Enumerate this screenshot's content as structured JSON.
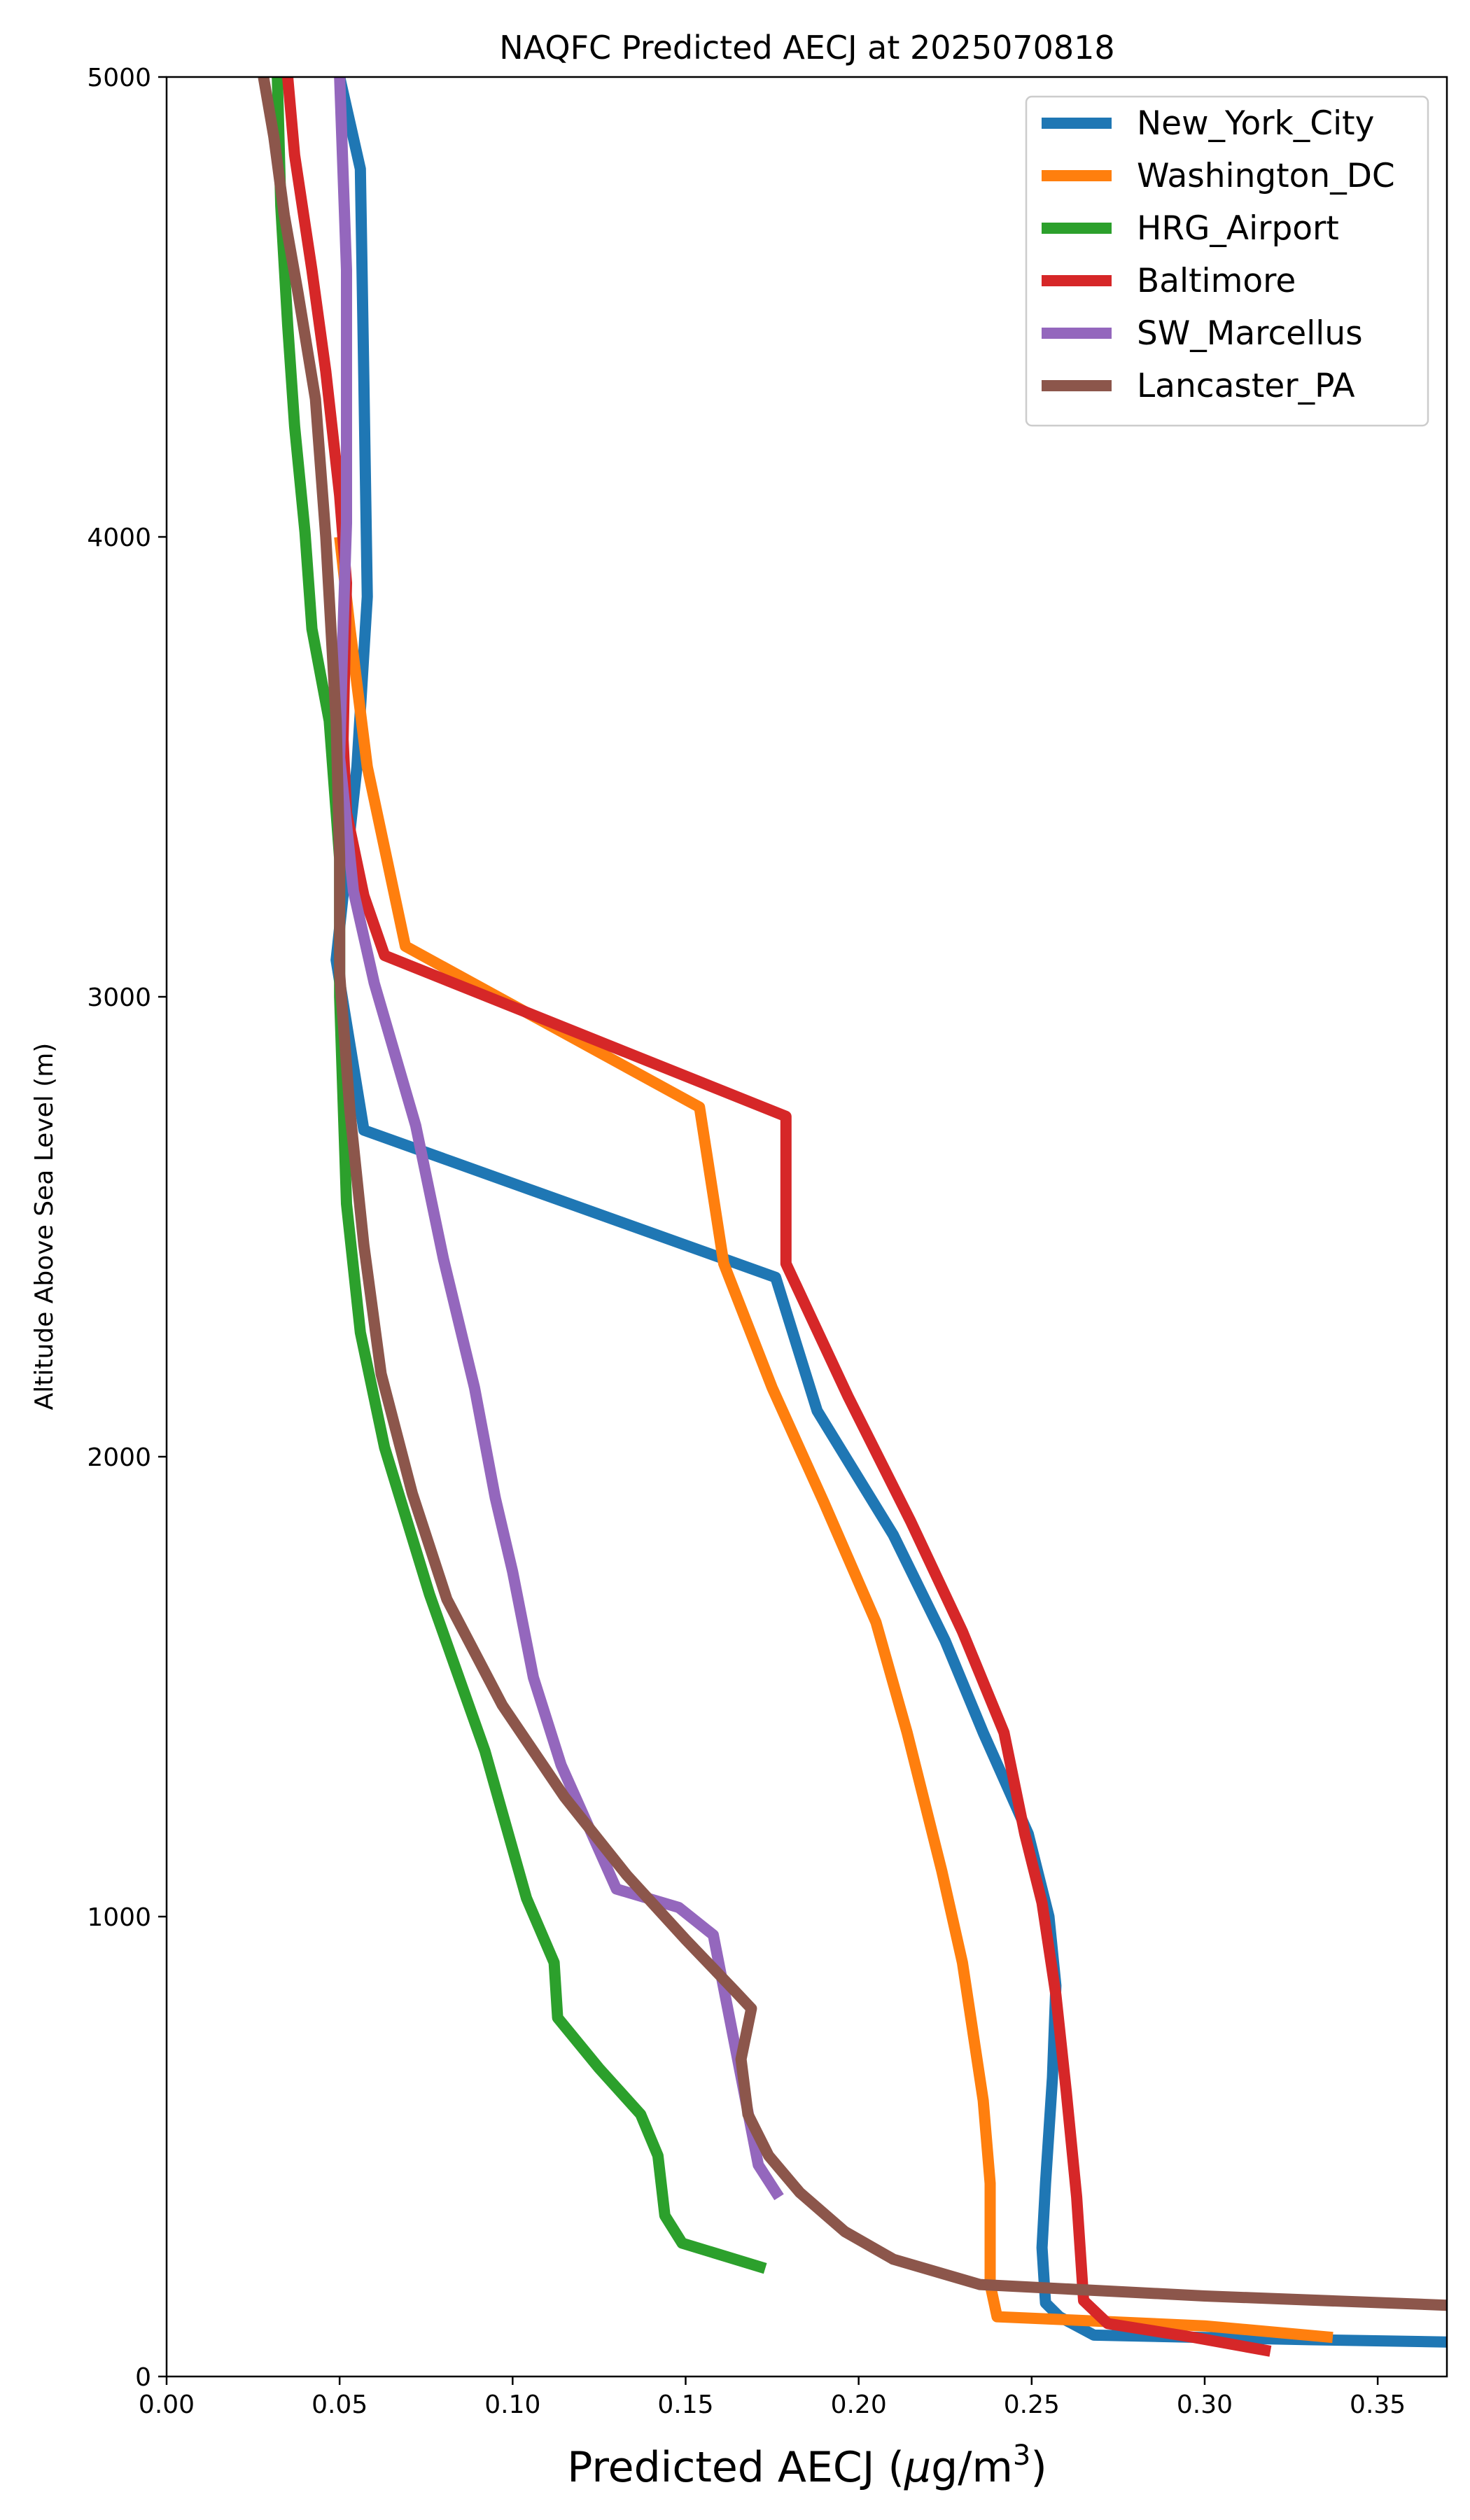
{
  "chart_data": {
    "type": "line",
    "title": "NAQFC Predicted AECJ at 2025070818",
    "xlabel_main": "Predicted AECJ (",
    "xlabel_mu": "μ",
    "xlabel_unit": "g/m",
    "xlabel_sup": "3",
    "xlabel_close": ")",
    "ylabel": "Altitude Above Sea Level (m)",
    "xlim": [
      0.0,
      0.37
    ],
    "ylim": [
      0,
      5000
    ],
    "xticks": [
      "0.00",
      "0.05",
      "0.10",
      "0.15",
      "0.20",
      "0.25",
      "0.30",
      "0.35"
    ],
    "xtick_values": [
      0.0,
      0.05,
      0.1,
      0.15,
      0.2,
      0.25,
      0.3,
      0.35
    ],
    "yticks": [
      "0",
      "1000",
      "2000",
      "3000",
      "4000",
      "5000"
    ],
    "ytick_values": [
      0,
      1000,
      2000,
      3000,
      4000,
      5000
    ],
    "grid": false,
    "legend_position": "top-right",
    "series": [
      {
        "name": "New_York_City",
        "color": "#1f77b4",
        "points": [
          [
            0.37,
            75
          ],
          [
            0.33,
            80
          ],
          [
            0.268,
            90
          ],
          [
            0.258,
            130
          ],
          [
            0.254,
            160
          ],
          [
            0.253,
            280
          ],
          [
            0.254,
            420
          ],
          [
            0.256,
            650
          ],
          [
            0.257,
            850
          ],
          [
            0.255,
            1000
          ],
          [
            0.249,
            1180
          ],
          [
            0.236,
            1400
          ],
          [
            0.225,
            1600
          ],
          [
            0.21,
            1830
          ],
          [
            0.188,
            2100
          ],
          [
            0.176,
            2390
          ],
          [
            0.057,
            2710
          ],
          [
            0.049,
            3080
          ],
          [
            0.055,
            3500
          ],
          [
            0.058,
            3870
          ],
          [
            0.057,
            4340
          ],
          [
            0.056,
            4800
          ],
          [
            0.05,
            5000
          ]
        ]
      },
      {
        "name": "Washington_DC",
        "color": "#ff7f0e",
        "points": [
          [
            0.337,
            85
          ],
          [
            0.3,
            110
          ],
          [
            0.24,
            130
          ],
          [
            0.238,
            200
          ],
          [
            0.238,
            420
          ],
          [
            0.236,
            600
          ],
          [
            0.23,
            900
          ],
          [
            0.224,
            1100
          ],
          [
            0.214,
            1400
          ],
          [
            0.205,
            1640
          ],
          [
            0.19,
            1900
          ],
          [
            0.175,
            2150
          ],
          [
            0.161,
            2420
          ],
          [
            0.154,
            2760
          ],
          [
            0.069,
            3110
          ],
          [
            0.058,
            3500
          ],
          [
            0.053,
            3800
          ],
          [
            0.05,
            4000
          ]
        ]
      },
      {
        "name": "HRG_Airport",
        "color": "#2ca02c",
        "points": [
          [
            0.173,
            235
          ],
          [
            0.149,
            290
          ],
          [
            0.144,
            350
          ],
          [
            0.142,
            480
          ],
          [
            0.137,
            570
          ],
          [
            0.125,
            670
          ],
          [
            0.113,
            780
          ],
          [
            0.112,
            900
          ],
          [
            0.104,
            1040
          ],
          [
            0.092,
            1360
          ],
          [
            0.076,
            1700
          ],
          [
            0.063,
            2020
          ],
          [
            0.056,
            2270
          ],
          [
            0.052,
            2550
          ],
          [
            0.05,
            3000
          ],
          [
            0.05,
            3300
          ],
          [
            0.047,
            3600
          ],
          [
            0.042,
            3800
          ],
          [
            0.04,
            4010
          ],
          [
            0.037,
            4240
          ],
          [
            0.035,
            4460
          ],
          [
            0.033,
            4720
          ],
          [
            0.032,
            5000
          ]
        ]
      },
      {
        "name": "Baltimore",
        "color": "#d62728",
        "points": [
          [
            0.319,
            55
          ],
          [
            0.297,
            85
          ],
          [
            0.272,
            115
          ],
          [
            0.265,
            165
          ],
          [
            0.263,
            390
          ],
          [
            0.26,
            620
          ],
          [
            0.257,
            830
          ],
          [
            0.253,
            1030
          ],
          [
            0.248,
            1180
          ],
          [
            0.242,
            1400
          ],
          [
            0.23,
            1620
          ],
          [
            0.215,
            1860
          ],
          [
            0.197,
            2130
          ],
          [
            0.179,
            2420
          ],
          [
            0.179,
            2740
          ],
          [
            0.063,
            3090
          ],
          [
            0.057,
            3220
          ],
          [
            0.052,
            3400
          ],
          [
            0.051,
            3560
          ],
          [
            0.052,
            3900
          ],
          [
            0.05,
            4090
          ],
          [
            0.046,
            4360
          ],
          [
            0.042,
            4580
          ],
          [
            0.037,
            4830
          ],
          [
            0.035,
            5000
          ]
        ]
      },
      {
        "name": "SW_Marcellus",
        "color": "#9467bd",
        "points": [
          [
            0.177,
            390
          ],
          [
            0.171,
            460
          ],
          [
            0.158,
            960
          ],
          [
            0.148,
            1020
          ],
          [
            0.13,
            1060
          ],
          [
            0.114,
            1330
          ],
          [
            0.106,
            1520
          ],
          [
            0.1,
            1750
          ],
          [
            0.095,
            1910
          ],
          [
            0.089,
            2150
          ],
          [
            0.08,
            2430
          ],
          [
            0.072,
            2720
          ],
          [
            0.06,
            3030
          ],
          [
            0.054,
            3230
          ],
          [
            0.05,
            3520
          ],
          [
            0.051,
            3800
          ],
          [
            0.052,
            4030
          ],
          [
            0.052,
            4580
          ],
          [
            0.05,
            5000
          ]
        ]
      },
      {
        "name": "Lancaster_PA",
        "color": "#8c564b",
        "points": [
          [
            0.37,
            155
          ],
          [
            0.3,
            175
          ],
          [
            0.235,
            200
          ],
          [
            0.21,
            255
          ],
          [
            0.196,
            315
          ],
          [
            0.183,
            400
          ],
          [
            0.174,
            480
          ],
          [
            0.168,
            570
          ],
          [
            0.166,
            690
          ],
          [
            0.169,
            800
          ],
          [
            0.164,
            840
          ],
          [
            0.15,
            950
          ],
          [
            0.133,
            1090
          ],
          [
            0.115,
            1260
          ],
          [
            0.097,
            1460
          ],
          [
            0.081,
            1690
          ],
          [
            0.071,
            1920
          ],
          [
            0.062,
            2180
          ],
          [
            0.057,
            2460
          ],
          [
            0.053,
            2750
          ],
          [
            0.05,
            3050
          ],
          [
            0.05,
            3300
          ],
          [
            0.049,
            3600
          ],
          [
            0.046,
            4000
          ],
          [
            0.043,
            4300
          ],
          [
            0.038,
            4530
          ],
          [
            0.034,
            4700
          ],
          [
            0.031,
            4870
          ],
          [
            0.028,
            5000
          ]
        ]
      }
    ]
  }
}
